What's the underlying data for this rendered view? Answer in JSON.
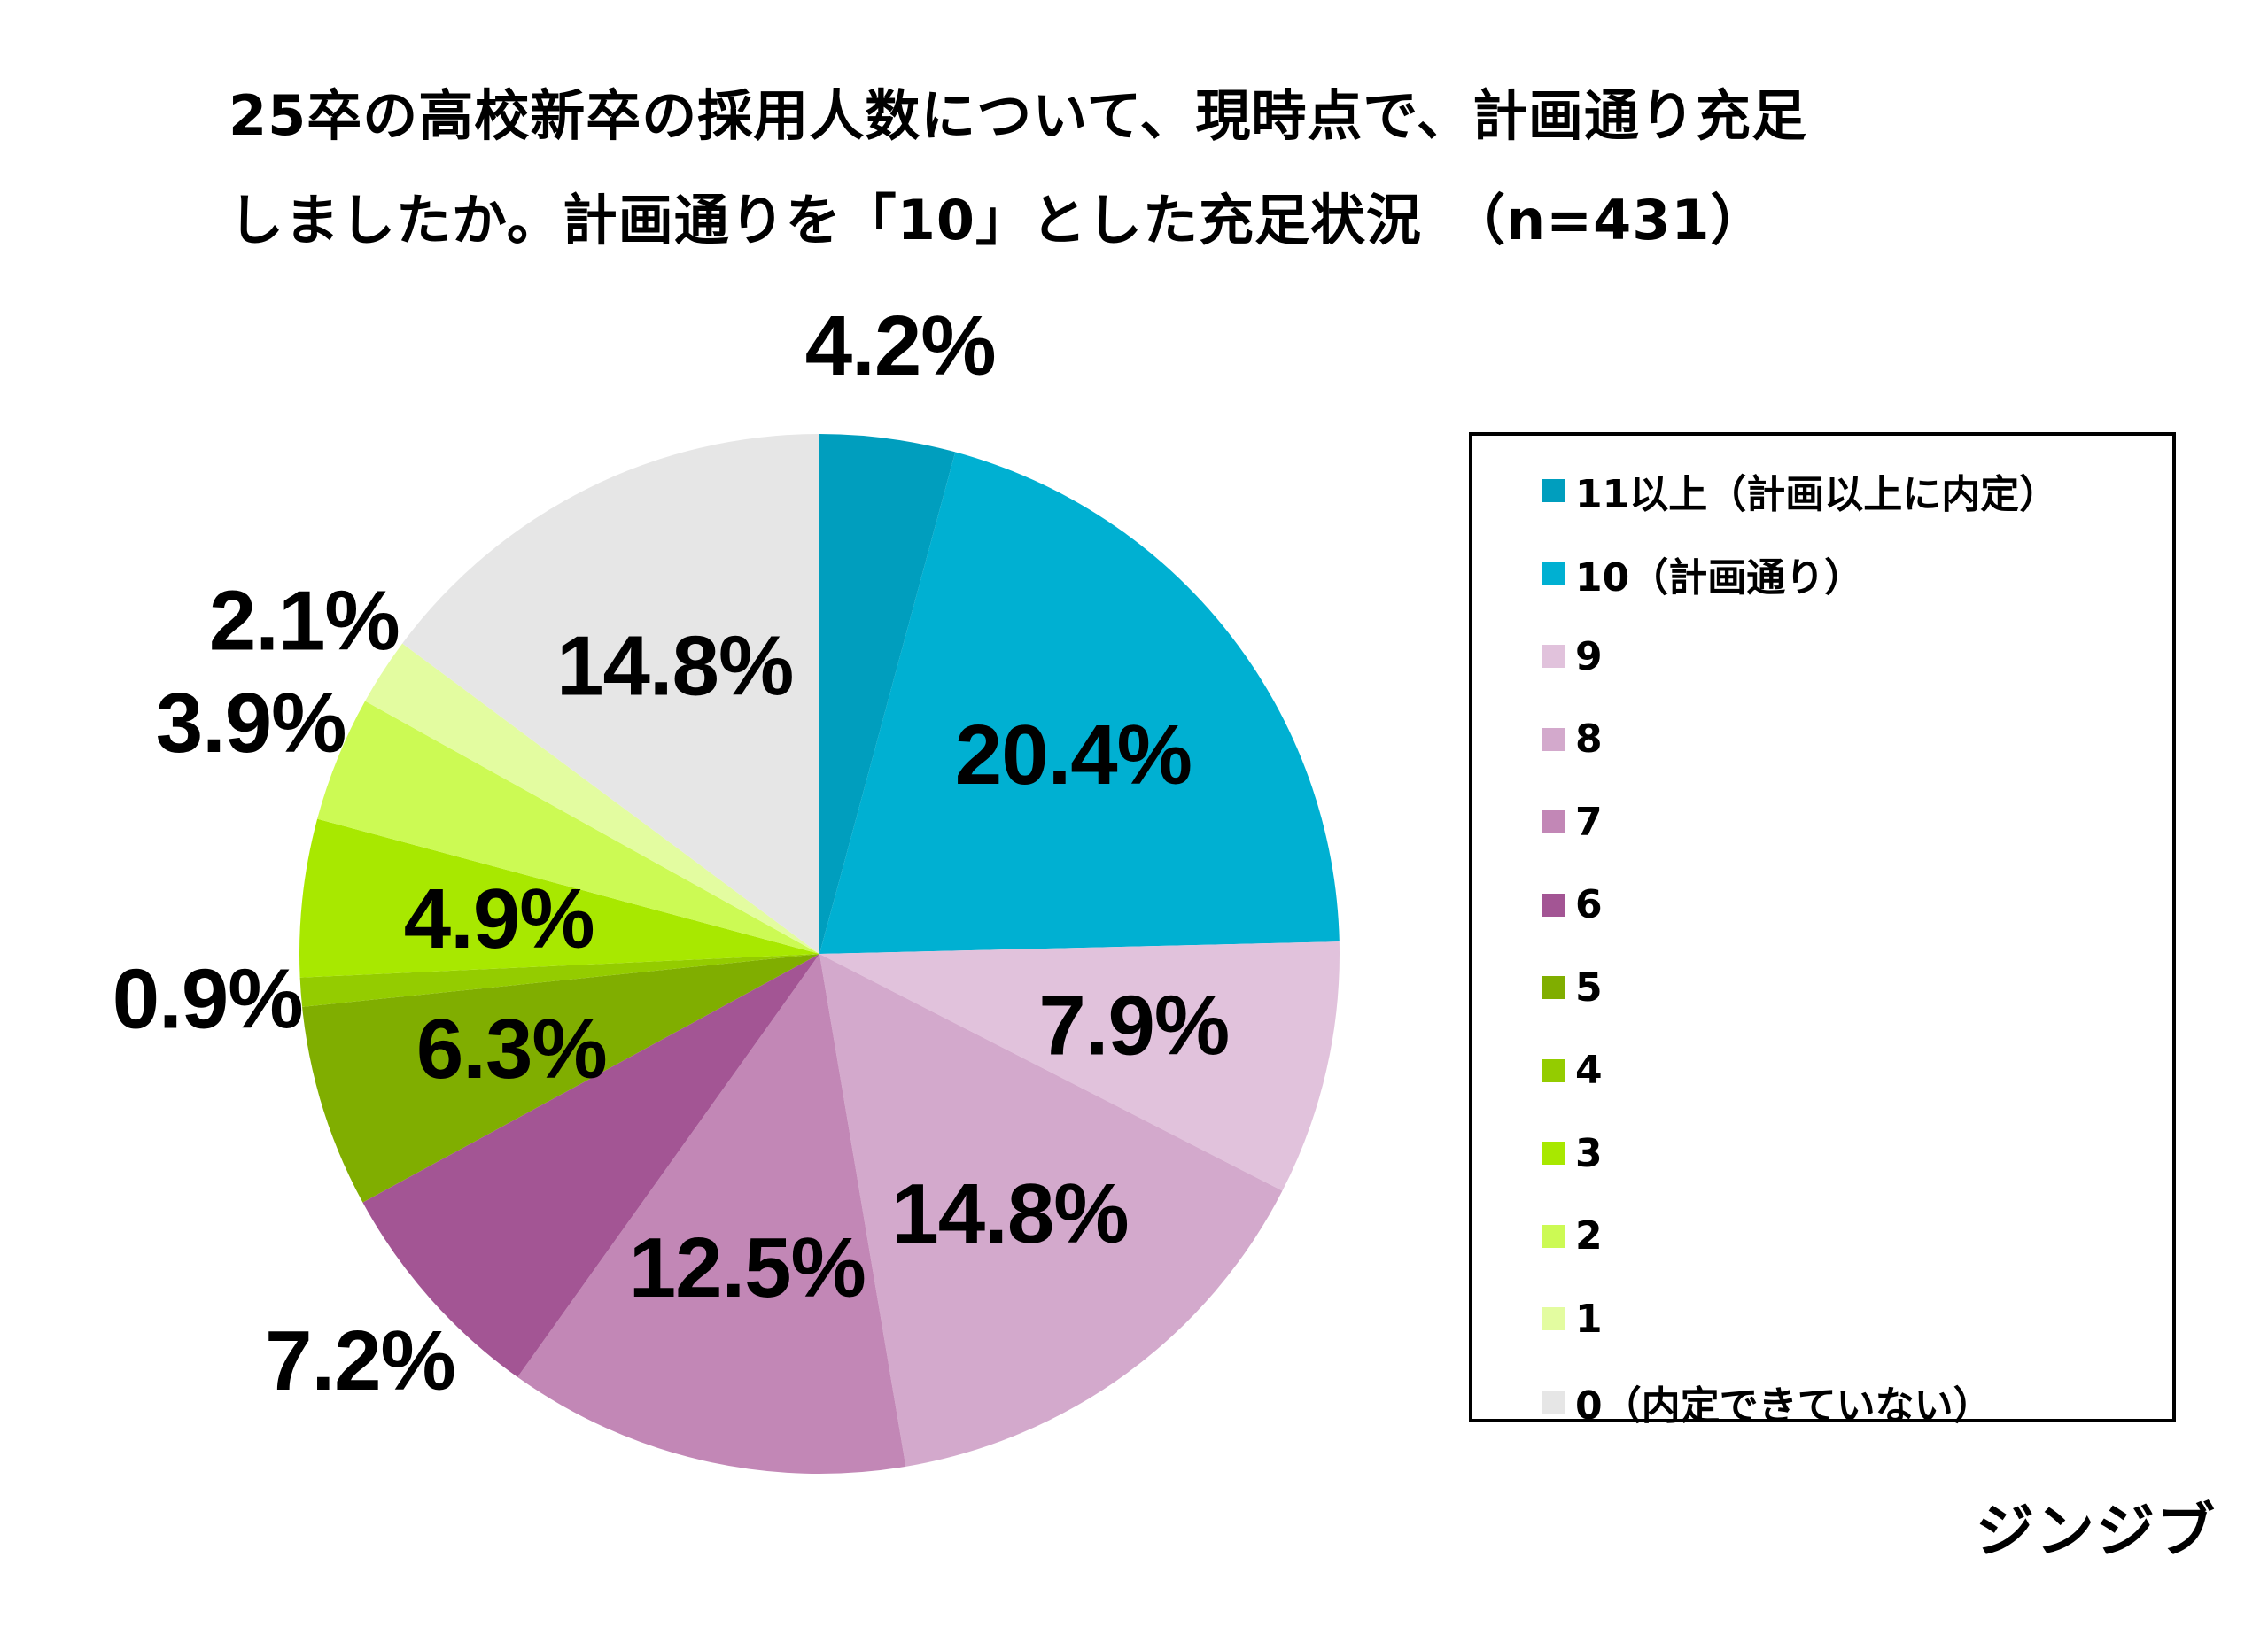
{
  "title": {
    "line1": "25卒の高校新卒の採用人数について、現時点で、計画通り充足",
    "line2": "しましたか。計画通りを「10」とした充足状況　（n=431）"
  },
  "brand": "ジンジブ",
  "chart_data": {
    "type": "pie",
    "title": "25卒の高校新卒の採用人数について、現時点で、計画通り充足しましたか。計画通りを「10」とした充足状況　（n=431）",
    "n": 431,
    "start_angle_deg": 0,
    "direction": "clockwise",
    "legend_position": "right",
    "unit": "%",
    "slices": [
      {
        "name": "11以上（計画以上に内定）",
        "value": 4.2,
        "label": "4.2%",
        "color": "#009EBE",
        "label_position": "outside"
      },
      {
        "name": "10（計画通り）",
        "value": 20.4,
        "label": "20.4%",
        "color": "#00B0D2",
        "label_position": "inside"
      },
      {
        "name": "9",
        "value": 7.9,
        "label": "7.9%",
        "color": "#E1C2DC",
        "label_position": "inside"
      },
      {
        "name": "8",
        "value": 14.8,
        "label": "14.8%",
        "color": "#D3A9CC",
        "label_position": "inside"
      },
      {
        "name": "7",
        "value": 12.5,
        "label": "12.5%",
        "color": "#C287B6",
        "label_position": "inside"
      },
      {
        "name": "6",
        "value": 7.2,
        "label": "7.2%",
        "color": "#A35594",
        "label_position": "outside"
      },
      {
        "name": "5",
        "value": 6.3,
        "label": "6.3%",
        "color": "#80AE00",
        "label_position": "inside"
      },
      {
        "name": "4",
        "value": 0.9,
        "label": "0.9%",
        "color": "#94CC00",
        "label_position": "outside"
      },
      {
        "name": "3",
        "value": 4.9,
        "label": "4.9%",
        "color": "#A8E800",
        "label_position": "inside"
      },
      {
        "name": "2",
        "value": 3.9,
        "label": "3.9%",
        "color": "#CCFA54",
        "label_position": "outside"
      },
      {
        "name": "1",
        "value": 2.1,
        "label": "2.1%",
        "color": "#E3FCA0",
        "label_position": "outside"
      },
      {
        "name": "0（内定できていない）",
        "value": 14.8,
        "label": "14.8%",
        "color": "#E6E6E6",
        "label_position": "inside"
      }
    ]
  }
}
